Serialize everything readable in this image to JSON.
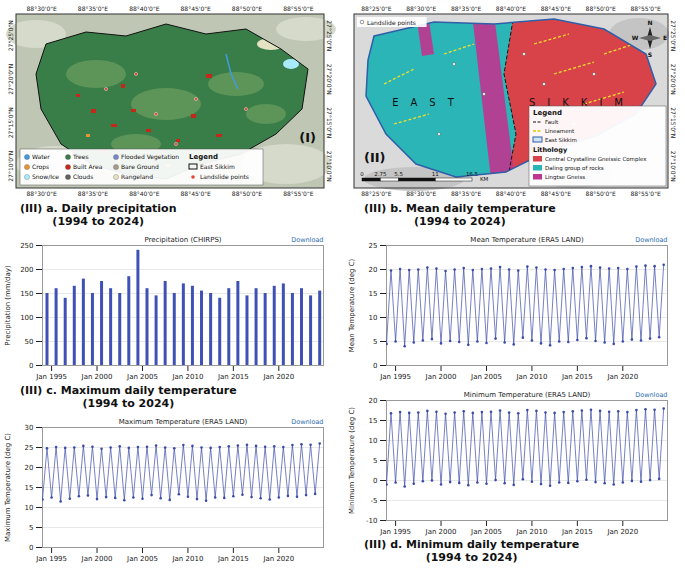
{
  "maps": [
    {
      "label": "(I)",
      "legend_title": "Legend",
      "classes": [
        {
          "name": "Water",
          "color": "#419bdf"
        },
        {
          "name": "Trees",
          "color": "#397d49"
        },
        {
          "name": "Flooded Vegetation",
          "color": "#7a87c6"
        },
        {
          "name": "Crops",
          "color": "#e49635"
        },
        {
          "name": "Built Area",
          "color": "#c4281b"
        },
        {
          "name": "Bare Ground",
          "color": "#a59b8f"
        },
        {
          "name": "Snow/Ice",
          "color": "#a8ebff"
        },
        {
          "name": "Clouds",
          "color": "#616161"
        },
        {
          "name": "Rangeland",
          "color": "#e3e2c3"
        }
      ],
      "boundary": "East Sikkim",
      "points": "Landslide points",
      "lon_labels": [
        "88°30'0\"E",
        "88°35'0\"E",
        "88°40'0\"E",
        "88°45'0\"E",
        "88°50'0\"E",
        "88°55'0\"E"
      ],
      "lat_labels": [
        "27°25'0\"N",
        "27°20'0\"N",
        "27°15'0\"N",
        "27°10'0\"N"
      ]
    },
    {
      "label": "(II)",
      "points": "Landslide points",
      "region_text": "EAST SIKKIM",
      "legend_title": "Legend",
      "lines": [
        "Fault",
        "Lineament"
      ],
      "boundary": "East Sikkim",
      "lithology_title": "Lithology",
      "classes": [
        {
          "name": "Central Crystalline Gneissic Complex",
          "color": "#d8434a"
        },
        {
          "name": "Daling group of rocks",
          "color": "#2bb5b7"
        },
        {
          "name": "Lingtse Gneiss",
          "color": "#c0358f"
        }
      ],
      "scale": [
        0,
        2.75,
        5.5,
        11,
        16.5
      ],
      "scale_unit": "KM",
      "compass": [
        "N",
        "E",
        "W",
        "S"
      ],
      "lon_labels": [
        "88°25'0\"E",
        "88°30'0\"E",
        "88°35'0\"E",
        "88°40'0\"E",
        "88°45'0\"E",
        "88°50'0\"E",
        "88°55'0\"E"
      ],
      "lat_labels": [
        "27°25'0\"N",
        "27°20'0\"N",
        "27°15'0\"N",
        "27°10'0\"N"
      ]
    }
  ],
  "chart_data": [
    {
      "type": "bar",
      "title": "(III) a. Daily precipitation",
      "subtitle": "(1994 to 2024)",
      "annotations": [
        "Precipitation (CHIRPS)",
        "Download"
      ],
      "ylabel": "Precipitation (mm/day)",
      "x": [
        "1994-07",
        "1995-07",
        "1996-07",
        "1997-07",
        "1998-07",
        "1999-07",
        "2000-07",
        "2001-07",
        "2002-07",
        "2003-07",
        "2004-07",
        "2005-07",
        "2006-07",
        "2007-07",
        "2008-07",
        "2009-07",
        "2010-07",
        "2011-07",
        "2012-07",
        "2013-07",
        "2014-07",
        "2015-07",
        "2016-07",
        "2017-07",
        "2018-07",
        "2019-07",
        "2020-07",
        "2021-07",
        "2022-07",
        "2023-07",
        "2024-07"
      ],
      "values": [
        150,
        160,
        140,
        165,
        180,
        150,
        175,
        160,
        150,
        185,
        240,
        160,
        145,
        175,
        150,
        170,
        165,
        155,
        150,
        140,
        160,
        175,
        145,
        160,
        150,
        165,
        170,
        150,
        160,
        145,
        155
      ],
      "color": "#3f51b5",
      "xlim": [
        "1994-01",
        "2024-12"
      ],
      "xticks": [
        {
          "value": "1995-01",
          "label": "Jan 1995"
        },
        {
          "value": "2000-01",
          "label": "Jan 2000"
        },
        {
          "value": "2005-01",
          "label": "Jan 2005"
        },
        {
          "value": "2010-01",
          "label": "Jan 2010"
        },
        {
          "value": "2015-01",
          "label": "Jan 2015"
        },
        {
          "value": "2020-01",
          "label": "Jan 2020"
        }
      ],
      "ylim": [
        0,
        250
      ],
      "yticks": [
        0,
        50,
        100,
        150,
        200,
        250
      ],
      "grid": true
    },
    {
      "type": "line",
      "title": "(III) b. Mean daily temperature",
      "subtitle": "(1994 to 2024)",
      "annotations": [
        "Mean Temperature (ERA5 LAND)",
        "Download"
      ],
      "ylabel": "Mean Temperature (deg C)",
      "x": [
        "1994-01",
        "1994-07",
        "1995-01",
        "1995-07",
        "1996-01",
        "1996-07",
        "1997-01",
        "1997-07",
        "1998-01",
        "1998-07",
        "1999-01",
        "1999-07",
        "2000-01",
        "2000-07",
        "2001-01",
        "2001-07",
        "2002-01",
        "2002-07",
        "2003-01",
        "2003-07",
        "2004-01",
        "2004-07",
        "2005-01",
        "2005-07",
        "2006-01",
        "2006-07",
        "2007-01",
        "2007-07",
        "2008-01",
        "2008-07",
        "2009-01",
        "2009-07",
        "2010-01",
        "2010-07",
        "2011-01",
        "2011-07",
        "2012-01",
        "2012-07",
        "2013-01",
        "2013-07",
        "2014-01",
        "2014-07",
        "2015-01",
        "2015-07",
        "2016-01",
        "2016-07",
        "2017-01",
        "2017-07",
        "2018-01",
        "2018-07",
        "2019-01",
        "2019-07",
        "2020-01",
        "2020-07",
        "2021-01",
        "2021-07",
        "2022-01",
        "2022-07",
        "2023-01",
        "2023-07",
        "2024-01",
        "2024-07"
      ],
      "values": [
        4.5,
        19.8,
        5.0,
        20.1,
        4.0,
        19.9,
        4.8,
        20.0,
        5.2,
        20.4,
        5.5,
        20.2,
        4.6,
        19.7,
        5.1,
        20.0,
        4.9,
        20.3,
        4.3,
        19.9,
        5.0,
        20.1,
        4.7,
        20.2,
        5.6,
        20.5,
        4.8,
        20.0,
        4.4,
        19.8,
        5.8,
        20.6,
        5.2,
        20.4,
        4.6,
        20.0,
        4.2,
        19.9,
        5.0,
        20.1,
        4.9,
        20.3,
        5.3,
        20.5,
        5.7,
        20.7,
        5.1,
        20.4,
        4.8,
        20.2,
        4.5,
        20.3,
        5.0,
        20.1,
        5.4,
        20.6,
        5.2,
        20.8,
        5.6,
        20.7,
        5.9,
        21.0
      ],
      "color": "#3b4ba8",
      "marker": "circle",
      "xlim": [
        "1994-01",
        "2024-12"
      ],
      "xticks": [
        {
          "value": "1995-01",
          "label": "Jan 1995"
        },
        {
          "value": "2000-01",
          "label": "Jan 2000"
        },
        {
          "value": "2005-01",
          "label": "Jan 2005"
        },
        {
          "value": "2010-01",
          "label": "Jan 2010"
        },
        {
          "value": "2015-01",
          "label": "Jan 2015"
        },
        {
          "value": "2020-01",
          "label": "Jan 2020"
        }
      ],
      "ylim": [
        0,
        25
      ],
      "yticks": [
        0,
        5,
        10,
        15,
        20,
        25
      ],
      "grid": true
    },
    {
      "type": "line",
      "title": "(III) c. Maximum daily temperature",
      "subtitle": "(1994 to 2024)",
      "annotations": [
        "Maximum Temperature (ERA5 LAND)",
        "Download"
      ],
      "ylabel": "Maximum Temperature (deg C)",
      "x": [
        "1994-01",
        "1994-07",
        "1995-01",
        "1995-07",
        "1996-01",
        "1996-07",
        "1997-01",
        "1997-07",
        "1998-01",
        "1998-07",
        "1999-01",
        "1999-07",
        "2000-01",
        "2000-07",
        "2001-01",
        "2001-07",
        "2002-01",
        "2002-07",
        "2003-01",
        "2003-07",
        "2004-01",
        "2004-07",
        "2005-01",
        "2005-07",
        "2006-01",
        "2006-07",
        "2007-01",
        "2007-07",
        "2008-01",
        "2008-07",
        "2009-01",
        "2009-07",
        "2010-01",
        "2010-07",
        "2011-01",
        "2011-07",
        "2012-01",
        "2012-07",
        "2013-01",
        "2013-07",
        "2014-01",
        "2014-07",
        "2015-01",
        "2015-07",
        "2016-01",
        "2016-07",
        "2017-01",
        "2017-07",
        "2018-01",
        "2018-07",
        "2019-01",
        "2019-07",
        "2020-01",
        "2020-07",
        "2021-01",
        "2021-07",
        "2022-01",
        "2022-07",
        "2023-01",
        "2023-07",
        "2024-01",
        "2024-07"
      ],
      "values": [
        12.0,
        24.8,
        12.5,
        25.1,
        11.5,
        24.9,
        12.2,
        25.0,
        12.8,
        25.4,
        13.0,
        25.2,
        12.1,
        24.7,
        12.6,
        25.0,
        12.4,
        25.3,
        11.8,
        24.9,
        12.5,
        25.1,
        12.2,
        25.2,
        13.1,
        25.5,
        12.3,
        25.0,
        11.9,
        24.8,
        13.3,
        25.6,
        12.7,
        25.4,
        12.1,
        25.0,
        11.7,
        24.9,
        12.5,
        25.1,
        12.4,
        25.3,
        12.8,
        25.5,
        13.2,
        25.7,
        12.6,
        25.4,
        12.3,
        25.2,
        12.0,
        25.3,
        12.5,
        25.1,
        12.9,
        25.6,
        12.7,
        25.8,
        13.1,
        25.7,
        13.4,
        26.0
      ],
      "color": "#3b4ba8",
      "marker": "circle",
      "xlim": [
        "1994-01",
        "2024-12"
      ],
      "xticks": [
        {
          "value": "1995-01",
          "label": "Jan 1995"
        },
        {
          "value": "2000-01",
          "label": "Jan 2000"
        },
        {
          "value": "2005-01",
          "label": "Jan 2005"
        },
        {
          "value": "2010-01",
          "label": "Jan 2010"
        },
        {
          "value": "2015-01",
          "label": "Jan 2015"
        },
        {
          "value": "2020-01",
          "label": "Jan 2020"
        }
      ],
      "ylim": [
        0,
        30
      ],
      "yticks": [
        0,
        5,
        10,
        15,
        20,
        25,
        30
      ],
      "grid": true
    },
    {
      "type": "line",
      "title": "(III) d. Minimum daily temperature",
      "subtitle": "(1994 to 2024)",
      "annotations": [
        "Minimum Temperature (ERA5 LAND)",
        "Download"
      ],
      "ylabel": "Minimum Temperature (deg C)",
      "x": [
        "1994-01",
        "1994-07",
        "1995-01",
        "1995-07",
        "1996-01",
        "1996-07",
        "1997-01",
        "1997-07",
        "1998-01",
        "1998-07",
        "1999-01",
        "1999-07",
        "2000-01",
        "2000-07",
        "2001-01",
        "2001-07",
        "2002-01",
        "2002-07",
        "2003-01",
        "2003-07",
        "2004-01",
        "2004-07",
        "2005-01",
        "2005-07",
        "2006-01",
        "2006-07",
        "2007-01",
        "2007-07",
        "2008-01",
        "2008-07",
        "2009-01",
        "2009-07",
        "2010-01",
        "2010-07",
        "2011-01",
        "2011-07",
        "2012-01",
        "2012-07",
        "2013-01",
        "2013-07",
        "2014-01",
        "2014-07",
        "2015-01",
        "2015-07",
        "2016-01",
        "2016-07",
        "2017-01",
        "2017-07",
        "2018-01",
        "2018-07",
        "2019-01",
        "2019-07",
        "2020-01",
        "2020-07",
        "2021-01",
        "2021-07",
        "2022-01",
        "2022-07",
        "2023-01",
        "2023-07",
        "2024-01",
        "2024-07"
      ],
      "values": [
        -1.0,
        16.8,
        -0.5,
        17.1,
        -1.5,
        16.9,
        -0.8,
        17.0,
        -0.2,
        17.4,
        0.0,
        17.2,
        -1.0,
        16.7,
        -0.4,
        17.0,
        -0.6,
        17.3,
        -1.2,
        16.9,
        -0.5,
        17.1,
        -0.8,
        17.2,
        0.1,
        17.5,
        -0.7,
        17.0,
        -1.1,
        16.8,
        0.3,
        17.6,
        -0.3,
        17.4,
        -0.9,
        17.0,
        -1.3,
        16.9,
        -0.5,
        17.1,
        -0.6,
        17.3,
        -0.2,
        17.5,
        0.2,
        17.7,
        -0.4,
        17.4,
        -0.7,
        17.2,
        -1.0,
        17.3,
        -0.5,
        17.1,
        -0.1,
        17.6,
        -0.3,
        17.8,
        0.1,
        17.7,
        0.4,
        18.0
      ],
      "color": "#3b4ba8",
      "marker": "circle",
      "xlim": [
        "1994-01",
        "2024-12"
      ],
      "xticks": [
        {
          "value": "1995-01",
          "label": "Jan 1995"
        },
        {
          "value": "2000-01",
          "label": "Jan 2000"
        },
        {
          "value": "2005-01",
          "label": "Jan 2005"
        },
        {
          "value": "2010-01",
          "label": "Jan 2010"
        },
        {
          "value": "2015-01",
          "label": "Jan 2015"
        },
        {
          "value": "2020-01",
          "label": "Jan 2020"
        }
      ],
      "ylim": [
        -10,
        20
      ],
      "yticks": [
        -10,
        -5,
        0,
        5,
        10,
        15,
        20
      ],
      "grid": true
    }
  ]
}
